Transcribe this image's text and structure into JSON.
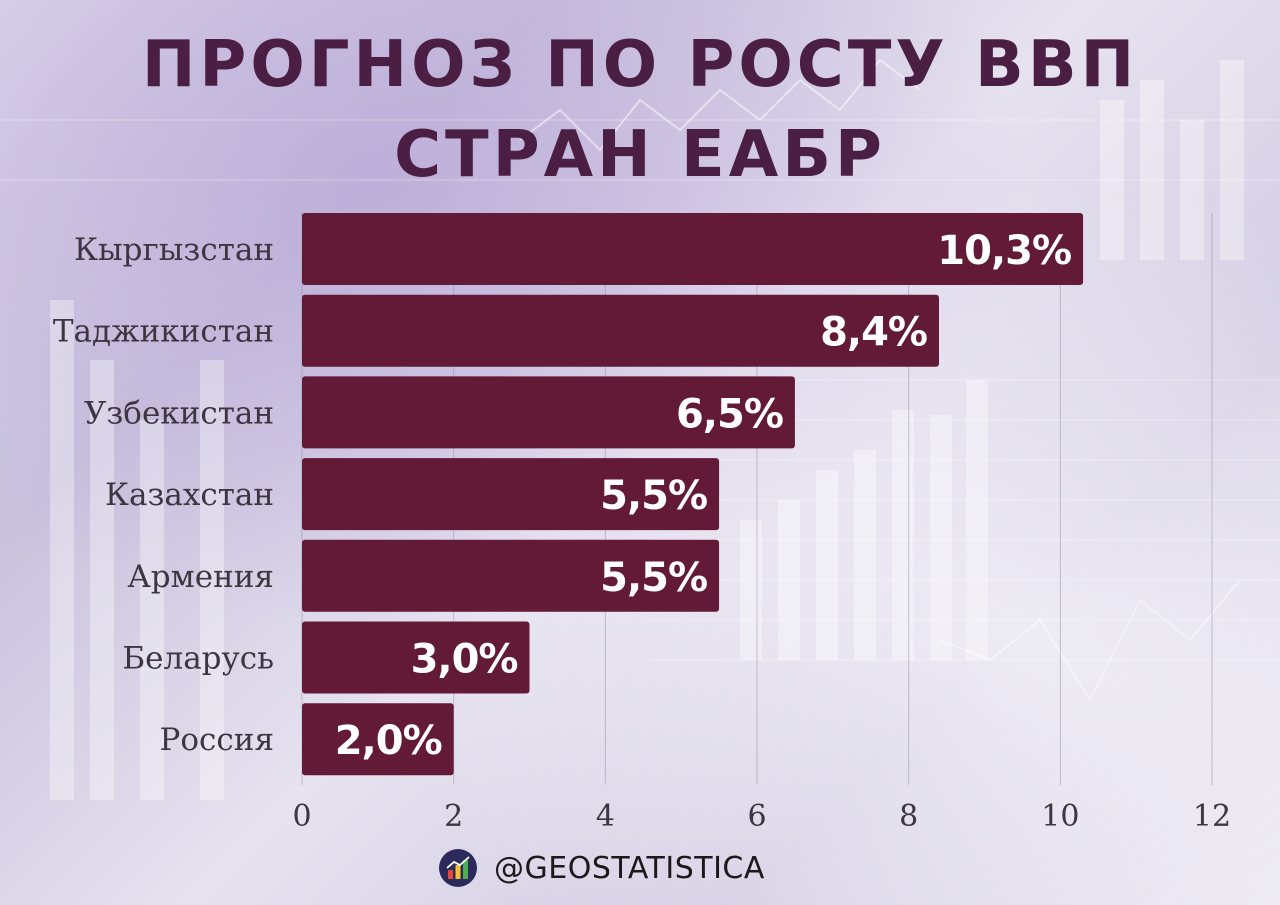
{
  "title_line1": "ПРОГНОЗ ПО РОСТУ ВВП",
  "title_line2": "СТРАН ЕАБР",
  "footer": {
    "handle": "@GEOSTATISTICA",
    "icon": "bar-chart-logo-icon"
  },
  "colors": {
    "bar": "#621a36",
    "title": "#4a1f43",
    "bar_label": "#ffffff",
    "category_label": "#3d3540",
    "tick_label": "#3d3540"
  },
  "chart_data": {
    "type": "bar",
    "orientation": "horizontal",
    "title": "ПРОГНОЗ ПО РОСТУ ВВП СТРАН ЕАБР",
    "categories": [
      "Кыргызстан",
      "Таджикистан",
      "Узбекистан",
      "Казахстан",
      "Армения",
      "Беларусь",
      "Россия"
    ],
    "values": [
      10.3,
      8.4,
      6.5,
      5.5,
      5.5,
      3.0,
      2.0
    ],
    "data_labels": [
      "10,3%",
      "8,4%",
      "6,5%",
      "5,5%",
      "5,5%",
      "3,0%",
      "2,0%"
    ],
    "xlim": [
      0,
      12
    ],
    "xticks": [
      0,
      2,
      4,
      6,
      8,
      10,
      12
    ],
    "xlabel": "",
    "ylabel": "",
    "grid": true,
    "legend": "none"
  }
}
